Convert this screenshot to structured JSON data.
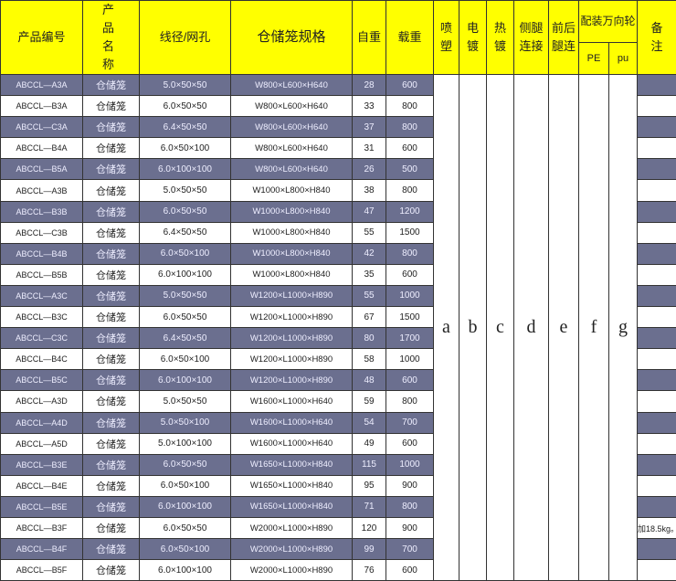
{
  "header": {
    "code": "产品编号",
    "name": "产 品 名 称",
    "wire": "线径/网孔",
    "spec": "仓储笼规格",
    "self_weight": "自重",
    "load": "载重",
    "spray": "喷塑",
    "electro": "电镀",
    "hotdip": "热镀",
    "side_leg": "侧腿连接",
    "front_back_leg": "前后腿连",
    "caster": "配装万向轮",
    "caster_pe": "PE",
    "caster_pu": "pu",
    "remark": "备注"
  },
  "finish_letters": [
    "a",
    "b",
    "c",
    "d",
    "e",
    "f",
    "g"
  ],
  "colors": {
    "header_bg": "#ffff00",
    "dark_row": "#6b6f8f",
    "light_row": "#ffffff"
  },
  "rows": [
    {
      "code": "ABCCL—A3A",
      "name": "仓储笼",
      "wire": "5.0×50×50",
      "spec": "W800×L600×H640",
      "self_weight": "28",
      "load": "600",
      "remark": ""
    },
    {
      "code": "ABCCL—B3A",
      "name": "仓储笼",
      "wire": "6.0×50×50",
      "spec": "W800×L600×H640",
      "self_weight": "33",
      "load": "800",
      "remark": ""
    },
    {
      "code": "ABCCL—C3A",
      "name": "仓储笼",
      "wire": "6.4×50×50",
      "spec": "W800×L600×H640",
      "self_weight": "37",
      "load": "800",
      "remark": ""
    },
    {
      "code": "ABCCL—B4A",
      "name": "仓储笼",
      "wire": "6.0×50×100",
      "spec": "W800×L600×H640",
      "self_weight": "31",
      "load": "600",
      "remark": ""
    },
    {
      "code": "ABCCL—B5A",
      "name": "仓储笼",
      "wire": "6.0×100×100",
      "spec": "W800×L600×H640",
      "self_weight": "26",
      "load": "500",
      "remark": ""
    },
    {
      "code": "ABCCL—A3B",
      "name": "仓储笼",
      "wire": "5.0×50×50",
      "spec": "W1000×L800×H840",
      "self_weight": "38",
      "load": "800",
      "remark": ""
    },
    {
      "code": "ABCCL—B3B",
      "name": "仓储笼",
      "wire": "6.0×50×50",
      "spec": "W1000×L800×H840",
      "self_weight": "47",
      "load": "1200",
      "remark": ""
    },
    {
      "code": "ABCCL—C3B",
      "name": "仓储笼",
      "wire": "6.4×50×50",
      "spec": "W1000×L800×H840",
      "self_weight": "55",
      "load": "1500",
      "remark": ""
    },
    {
      "code": "ABCCL—B4B",
      "name": "仓储笼",
      "wire": "6.0×50×100",
      "spec": "W1000×L800×H840",
      "self_weight": "42",
      "load": "800",
      "remark": ""
    },
    {
      "code": "ABCCL—B5B",
      "name": "仓储笼",
      "wire": "6.0×100×100",
      "spec": "W1000×L800×H840",
      "self_weight": "35",
      "load": "600",
      "remark": ""
    },
    {
      "code": "ABCCL—A3C",
      "name": "仓储笼",
      "wire": "5.0×50×50",
      "spec": "W1200×L1000×H890",
      "self_weight": "55",
      "load": "1000",
      "remark": ""
    },
    {
      "code": "ABCCL—B3C",
      "name": "仓储笼",
      "wire": "6.0×50×50",
      "spec": "W1200×L1000×H890",
      "self_weight": "67",
      "load": "1500",
      "remark": ""
    },
    {
      "code": "ABCCL—C3C",
      "name": "仓储笼",
      "wire": "6.4×50×50",
      "spec": "W1200×L1000×H890",
      "self_weight": "80",
      "load": "1700",
      "remark": ""
    },
    {
      "code": "ABCCL—B4C",
      "name": "仓储笼",
      "wire": "6.0×50×100",
      "spec": "W1200×L1000×H890",
      "self_weight": "58",
      "load": "1000",
      "remark": ""
    },
    {
      "code": "ABCCL—B5C",
      "name": "仓储笼",
      "wire": "6.0×100×100",
      "spec": "W1200×L1000×H890",
      "self_weight": "48",
      "load": "600",
      "remark": ""
    },
    {
      "code": "ABCCL—A3D",
      "name": "仓储笼",
      "wire": "5.0×50×50",
      "spec": "W1600×L1000×H640",
      "self_weight": "59",
      "load": "800",
      "remark": ""
    },
    {
      "code": "ABCCL—A4D",
      "name": "仓储笼",
      "wire": "5.0×50×100",
      "spec": "W1600×L1000×H640",
      "self_weight": "54",
      "load": "700",
      "remark": ""
    },
    {
      "code": "ABCCL—A5D",
      "name": "仓储笼",
      "wire": "5.0×100×100",
      "spec": "W1600×L1000×H640",
      "self_weight": "49",
      "load": "600",
      "remark": ""
    },
    {
      "code": "ABCCL—B3E",
      "name": "仓储笼",
      "wire": "6.0×50×50",
      "spec": "W1650×L1000×H840",
      "self_weight": "115",
      "load": "1000",
      "remark": ""
    },
    {
      "code": "ABCCL—B4E",
      "name": "仓储笼",
      "wire": "6.0×50×100",
      "spec": "W1650×L1000×H840",
      "self_weight": "95",
      "load": "900",
      "remark": ""
    },
    {
      "code": "ABCCL—B5E",
      "name": "仓储笼",
      "wire": "6.0×100×100",
      "spec": "W1650×L1000×H840",
      "self_weight": "71",
      "load": "800",
      "remark": ""
    },
    {
      "code": "ABCCL—B3F",
      "name": "仓储笼",
      "wire": "6.0×50×50",
      "spec": "W2000×L1000×H890",
      "self_weight": "120",
      "load": "900",
      "remark": "加18.5kg。"
    },
    {
      "code": "ABCCL—B4F",
      "name": "仓储笼",
      "wire": "6.0×50×100",
      "spec": "W2000×L1000×H890",
      "self_weight": "99",
      "load": "700",
      "remark": ""
    },
    {
      "code": "ABCCL—B5F",
      "name": "仓储笼",
      "wire": "6.0×100×100",
      "spec": "W2000×L1000×H890",
      "self_weight": "76",
      "load": "600",
      "remark": ""
    }
  ]
}
